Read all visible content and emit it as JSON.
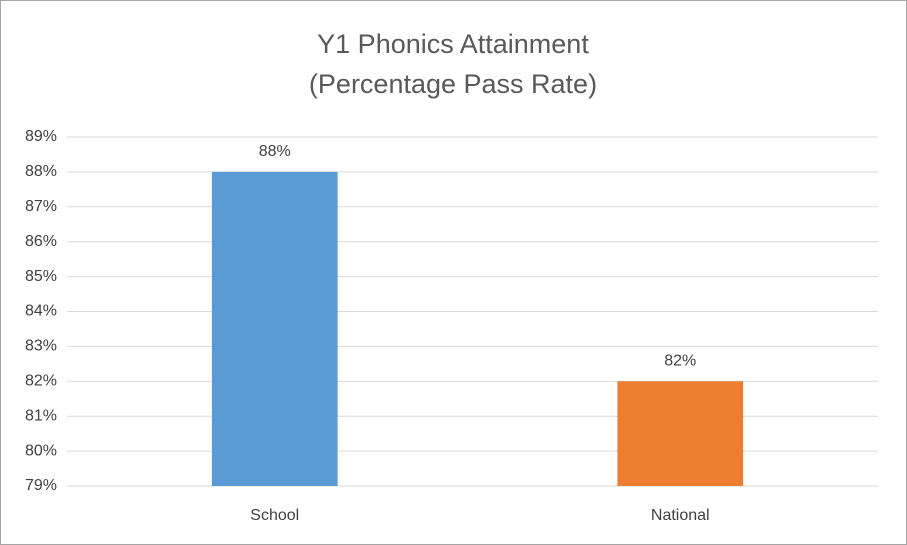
{
  "chart_data": {
    "type": "bar",
    "title": [
      "Y1 Phonics Attainment",
      "(Percentage Pass Rate)"
    ],
    "categories": [
      "School",
      "National"
    ],
    "values": [
      88,
      82
    ],
    "value_labels": [
      "88%",
      "82%"
    ],
    "colors": [
      "#5b9bd5",
      "#ed7d31"
    ],
    "ylim": [
      79,
      89
    ],
    "yticks": [
      {
        "value": 79,
        "label": "79%"
      },
      {
        "value": 80,
        "label": "80%"
      },
      {
        "value": 81,
        "label": "81%"
      },
      {
        "value": 82,
        "label": "82%"
      },
      {
        "value": 83,
        "label": "83%"
      },
      {
        "value": 84,
        "label": "84%"
      },
      {
        "value": 85,
        "label": "85%"
      },
      {
        "value": 86,
        "label": "86%"
      },
      {
        "value": 87,
        "label": "87%"
      },
      {
        "value": 88,
        "label": "88%"
      },
      {
        "value": 89,
        "label": "89%"
      }
    ],
    "grid": true
  }
}
